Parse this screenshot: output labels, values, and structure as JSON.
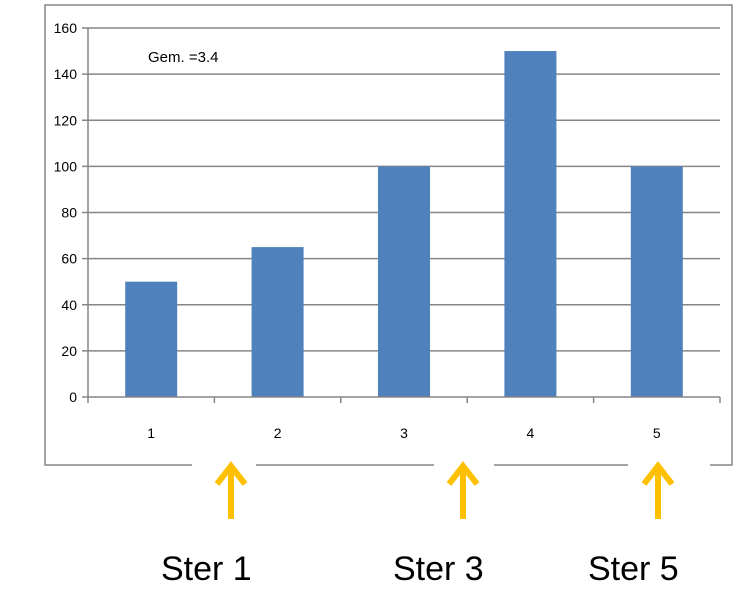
{
  "chart_data": {
    "type": "bar",
    "categories": [
      "1",
      "2",
      "3",
      "4",
      "5"
    ],
    "values": [
      50,
      65,
      100,
      150,
      100
    ],
    "ylim": [
      0,
      160
    ],
    "yticks": [
      0,
      20,
      40,
      60,
      80,
      100,
      120,
      140,
      160
    ],
    "grid": true,
    "legend": "none",
    "bar_color": "#4F81BD",
    "annotation": "Gem. =3.4"
  },
  "markers": {
    "arrow_color": "#FFC000",
    "items": [
      {
        "label": "Ster 1",
        "position": 1
      },
      {
        "label": "Ster 3",
        "position": 3
      },
      {
        "label": "Ster 5",
        "position": 5
      }
    ]
  }
}
